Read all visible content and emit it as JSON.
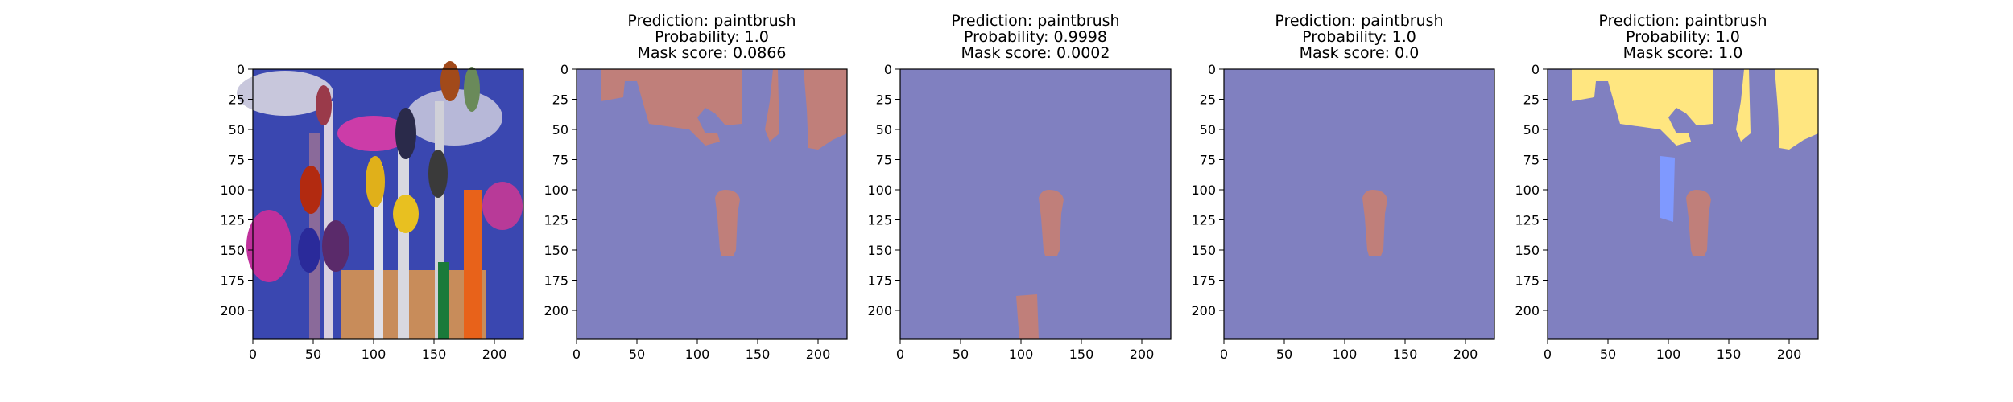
{
  "figure": {
    "background": "#ffffff",
    "mask_colors": {
      "background": "#8080c0",
      "paintbrush": "#c07f7a",
      "highlight": "#ffe680",
      "other": "#7f99ff"
    }
  },
  "chart_data": [
    {
      "type": "image",
      "title_lines": [],
      "content": "photo of paintbrushes",
      "xlim": [
        0,
        224
      ],
      "ylim": [
        224,
        0
      ],
      "xticks": [
        0,
        50,
        100,
        150,
        200
      ],
      "yticks": [
        0,
        25,
        50,
        75,
        100,
        125,
        150,
        175,
        200
      ]
    },
    {
      "type": "segmentation-mask",
      "title_lines": [
        "Prediction: paintbrush",
        "Probability: 1.0",
        "Mask score: 0.0866"
      ],
      "xlim": [
        0,
        224
      ],
      "ylim": [
        224,
        0
      ],
      "xticks": [
        0,
        50,
        100,
        150,
        200
      ],
      "yticks": [
        0,
        25,
        50,
        75,
        100,
        125,
        150,
        175,
        200
      ],
      "variant": "top-regions-and-blob"
    },
    {
      "type": "segmentation-mask",
      "title_lines": [
        "Prediction: paintbrush",
        "Probability: 0.9998",
        "Mask score: 0.0002"
      ],
      "xlim": [
        0,
        224
      ],
      "ylim": [
        224,
        0
      ],
      "xticks": [
        0,
        50,
        100,
        150,
        200
      ],
      "yticks": [
        0,
        25,
        50,
        75,
        100,
        125,
        150,
        175,
        200
      ],
      "variant": "blob-and-bottom"
    },
    {
      "type": "segmentation-mask",
      "title_lines": [
        "Prediction: paintbrush",
        "Probability: 1.0",
        "Mask score: 0.0"
      ],
      "xlim": [
        0,
        224
      ],
      "ylim": [
        224,
        0
      ],
      "xticks": [
        0,
        50,
        100,
        150,
        200
      ],
      "yticks": [
        0,
        25,
        50,
        75,
        100,
        125,
        150,
        175,
        200
      ],
      "variant": "blob-only"
    },
    {
      "type": "segmentation-mask",
      "title_lines": [
        "Prediction: paintbrush",
        "Probability: 1.0",
        "Mask score: 1.0"
      ],
      "xlim": [
        0,
        224
      ],
      "ylim": [
        224,
        0
      ],
      "xticks": [
        0,
        50,
        100,
        150,
        200
      ],
      "yticks": [
        0,
        25,
        50,
        75,
        100,
        125,
        150,
        175,
        200
      ],
      "variant": "full-overlay"
    }
  ]
}
